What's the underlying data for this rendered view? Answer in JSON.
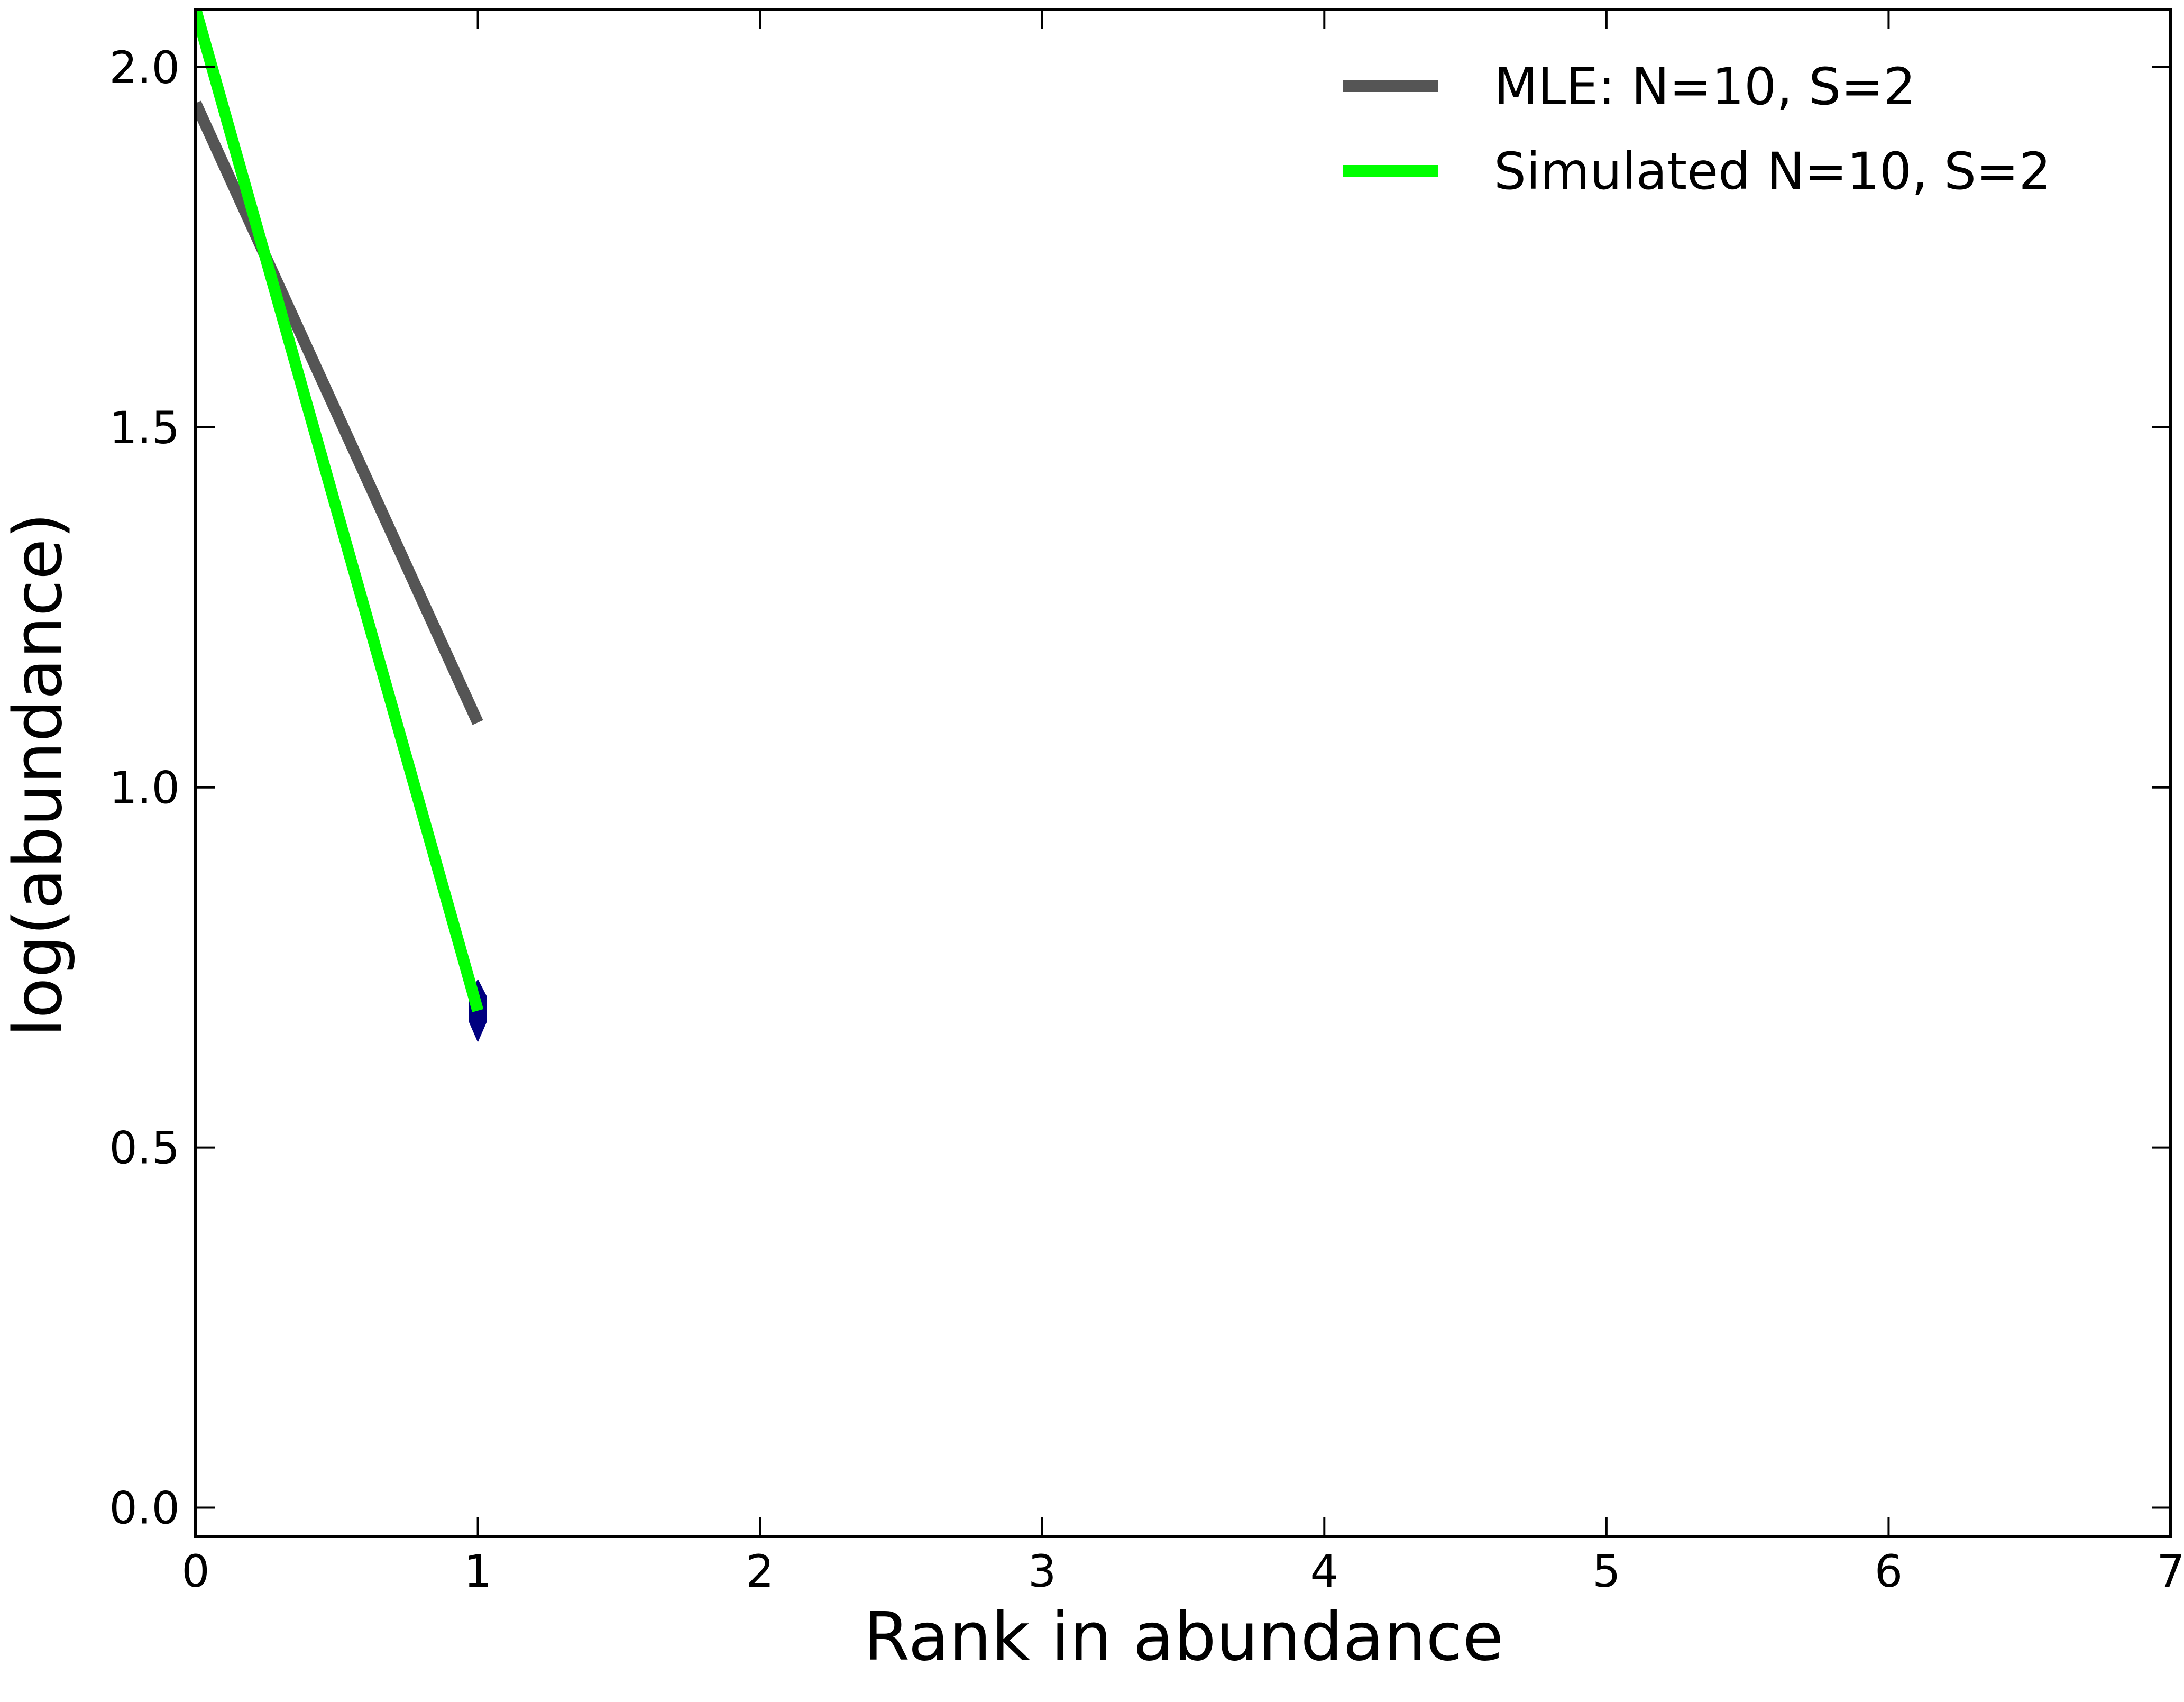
{
  "chart_data": {
    "type": "line",
    "xlabel": "Rank in abundance",
    "ylabel": "log(abundance)",
    "xlim": [
      0,
      7
    ],
    "ylim": [
      -0.04,
      2.08
    ],
    "xticks": [
      0,
      1,
      2,
      3,
      4,
      5,
      6,
      7
    ],
    "xtick_labels": [
      "0",
      "1",
      "2",
      "3",
      "4",
      "5",
      "6",
      "7"
    ],
    "yticks": [
      0.0,
      0.5,
      1.0,
      1.5,
      2.0
    ],
    "ytick_labels": [
      "0.0",
      "0.5",
      "1.0",
      "1.5",
      "2.0"
    ],
    "grid": false,
    "legend_position": "top-right",
    "series": [
      {
        "name": "MLE: N=10, S=2",
        "color": "#555555",
        "x": [
          0,
          1
        ],
        "y": [
          1.95,
          1.09
        ]
      },
      {
        "name": "Simulated N=10, S=2",
        "color": "#00ff00",
        "x": [
          0,
          1
        ],
        "y": [
          2.08,
          0.69
        ]
      }
    ],
    "markers": [
      {
        "x": 1,
        "y": 0.69,
        "color": "#000080",
        "shape": "diamond-icon"
      }
    ]
  }
}
